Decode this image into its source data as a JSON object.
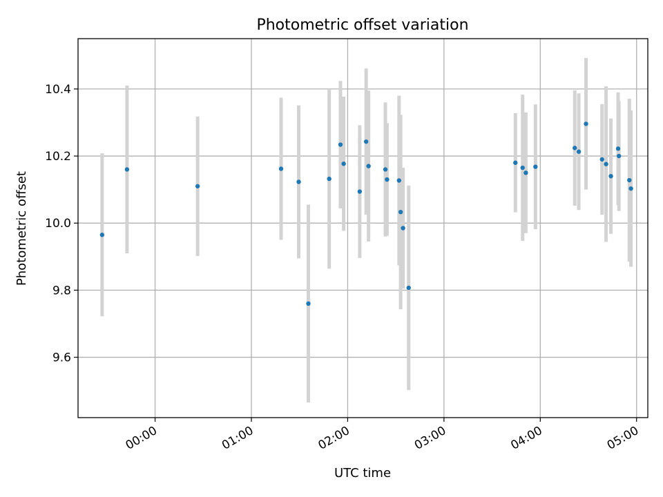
{
  "chart_data": {
    "type": "scatter",
    "title": "Photometric offset variation",
    "xlabel": "UTC time",
    "ylabel": "Photometric offset",
    "x_ticks": [
      "00:00",
      "01:00",
      "02:00",
      "03:00",
      "04:00",
      "05:00"
    ],
    "y_ticks": [
      "9.6",
      "9.8",
      "10.0",
      "10.2",
      "10.4"
    ],
    "xlim": [
      "-00:48:00",
      "05:07:00"
    ],
    "ylim": [
      9.42,
      10.55
    ],
    "grid": true,
    "colors": {
      "point": "#1f77b4",
      "errorbar": "#d3d3d3"
    },
    "series": [
      {
        "x": [
          "-00:33:00",
          "-00:17:30",
          "00:26:30",
          "01:18:30",
          "01:29:30",
          "01:35:30",
          "01:48:30",
          "01:55:30",
          "01:57:30",
          "02:07:30",
          "02:11:30",
          "02:13:00",
          "02:23:30",
          "02:24:30",
          "02:32:00",
          "02:33:00",
          "02:34:30",
          "02:38:00",
          "03:44:30",
          "03:49:00",
          "03:51:00",
          "03:57:00",
          "04:21:30",
          "04:24:00",
          "04:28:30",
          "04:38:30",
          "04:41:00",
          "04:44:00",
          "04:48:30",
          "04:49:00",
          "04:55:30",
          "04:56:30"
        ],
        "y": [
          9.965,
          10.16,
          10.11,
          10.162,
          10.123,
          9.76,
          10.132,
          10.234,
          10.177,
          10.094,
          10.243,
          10.17,
          10.16,
          10.13,
          10.127,
          10.033,
          9.985,
          9.807,
          10.18,
          10.165,
          10.15,
          10.168,
          10.224,
          10.213,
          10.296,
          10.19,
          10.176,
          10.14,
          10.222,
          10.2,
          10.128,
          10.103
        ],
        "error": [
          0.243,
          0.25,
          0.208,
          0.212,
          0.228,
          0.295,
          0.268,
          0.19,
          0.2,
          0.198,
          0.218,
          0.225,
          0.2,
          0.168,
          0.253,
          0.29,
          0.18,
          0.305,
          0.148,
          0.218,
          0.18,
          0.186,
          0.172,
          0.174,
          0.196,
          0.165,
          0.232,
          0.172,
          0.168,
          0.164,
          0.243,
          0.233
        ]
      }
    ]
  }
}
